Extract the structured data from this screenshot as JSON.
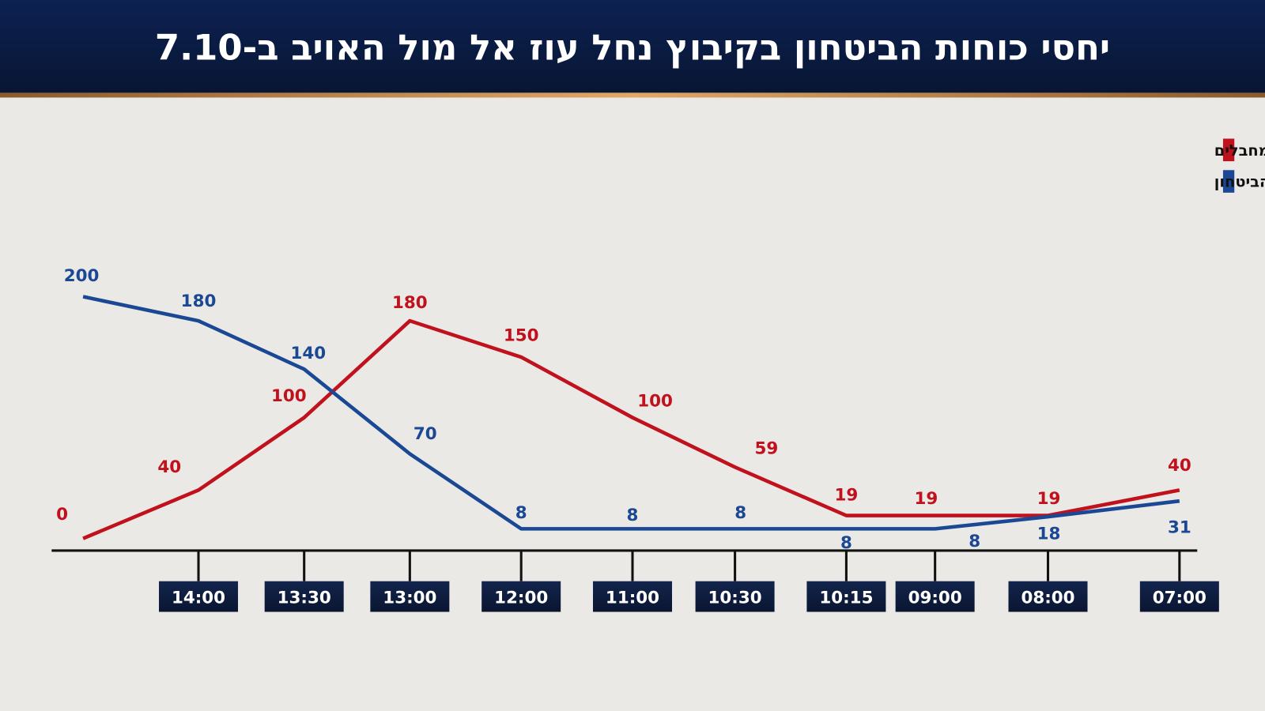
{
  "header": {
    "title": "יחסי כוחות הביטחון בקיבוץ נחל עוז אל מול האויב ב-7.10"
  },
  "colors": {
    "header_bg": "#0b1c44",
    "accent_stripe": "#c98a4b",
    "background": "#ebe9e5",
    "terrorists": "#c0111d",
    "security_forces": "#1a4894",
    "tick_box": "#0c1a3a"
  },
  "chart_data": {
    "type": "line",
    "title": "יחסי כוחות הביטחון בקיבוץ נחל עוז אל מול האויב ב-7.10",
    "xlabel": "",
    "ylabel": "",
    "x_direction": "right-to-left",
    "categories": [
      "",
      "14:00",
      "13:30",
      "13:00",
      "12:00",
      "11:00",
      "10:30",
      "10:15",
      "09:00",
      "08:00",
      "07:00"
    ],
    "series": [
      {
        "name": "מחבלים",
        "color": "#c0111d",
        "values": [
          0,
          40,
          100,
          180,
          150,
          100,
          59,
          19,
          19,
          19,
          40
        ]
      },
      {
        "name": "כוחות הביטחון",
        "color": "#1a4894",
        "values": [
          200,
          180,
          140,
          70,
          8,
          8,
          8,
          8,
          8,
          18,
          31
        ]
      }
    ],
    "ylim": [
      0,
      200
    ],
    "grid": false,
    "legend": "top-right",
    "data_labels": true
  }
}
